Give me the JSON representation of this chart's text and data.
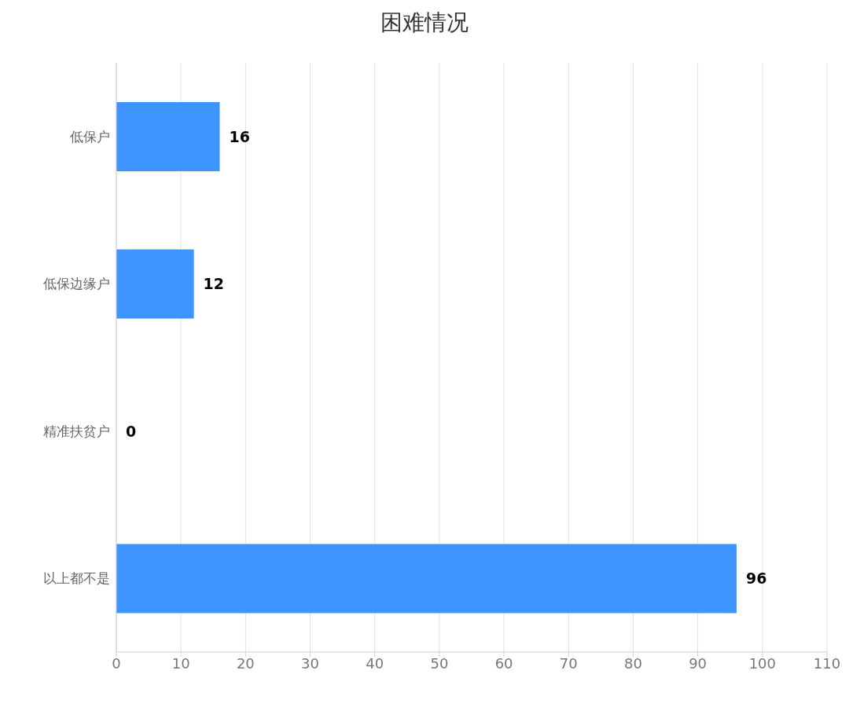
{
  "chart_data": {
    "type": "bar",
    "orientation": "horizontal",
    "title": "困难情况",
    "categories": [
      "低保户",
      "低保边缘户",
      "精准扶贫户",
      "以上都不是"
    ],
    "values": [
      16,
      12,
      0,
      96
    ],
    "color": "#3d95fd",
    "xlim": [
      0,
      110
    ],
    "xticks": [
      0,
      10,
      20,
      30,
      40,
      50,
      60,
      70,
      80,
      90,
      100,
      110
    ],
    "grid": "x",
    "data_labels": true
  }
}
